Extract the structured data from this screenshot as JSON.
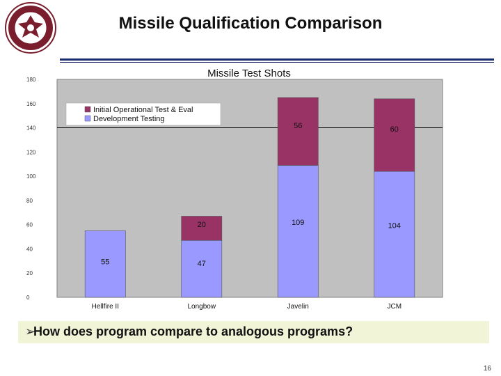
{
  "slide": {
    "title": "Missile Qualification Comparison",
    "bullet": "How does program compare to analogous programs?",
    "page_number": "16"
  },
  "colors": {
    "iote": "#993366",
    "dev": "#9999ff",
    "plot_bg": "#c0c0c0",
    "rule": "#1a2a6c",
    "band": "#f2f4d8"
  },
  "chart_data": {
    "type": "bar",
    "stacked": true,
    "title": "Missile Test Shots",
    "categories": [
      "Hellfire II",
      "Longbow",
      "Javelin",
      "JCM"
    ],
    "series": [
      {
        "name": "Development Testing",
        "values": [
          55,
          47,
          109,
          104
        ],
        "color": "#9999ff"
      },
      {
        "name": "Initial Operational Test & Eval",
        "values": [
          0,
          20,
          56,
          60
        ],
        "color": "#993366"
      }
    ],
    "data_labels": {
      "Development Testing": [
        "55",
        "47",
        "109",
        "104"
      ],
      "Initial Operational Test & Eval": [
        "",
        "20",
        "56",
        "60"
      ]
    },
    "ylim": [
      0,
      180
    ],
    "yticks": [
      0,
      20,
      40,
      60,
      80,
      100,
      120,
      140,
      160,
      180
    ],
    "reference_line": 140,
    "legend": [
      "Initial Operational Test & Eval",
      "Development Testing"
    ],
    "legend_position": "top-left",
    "grid": false,
    "xlabel": "",
    "ylabel": ""
  }
}
